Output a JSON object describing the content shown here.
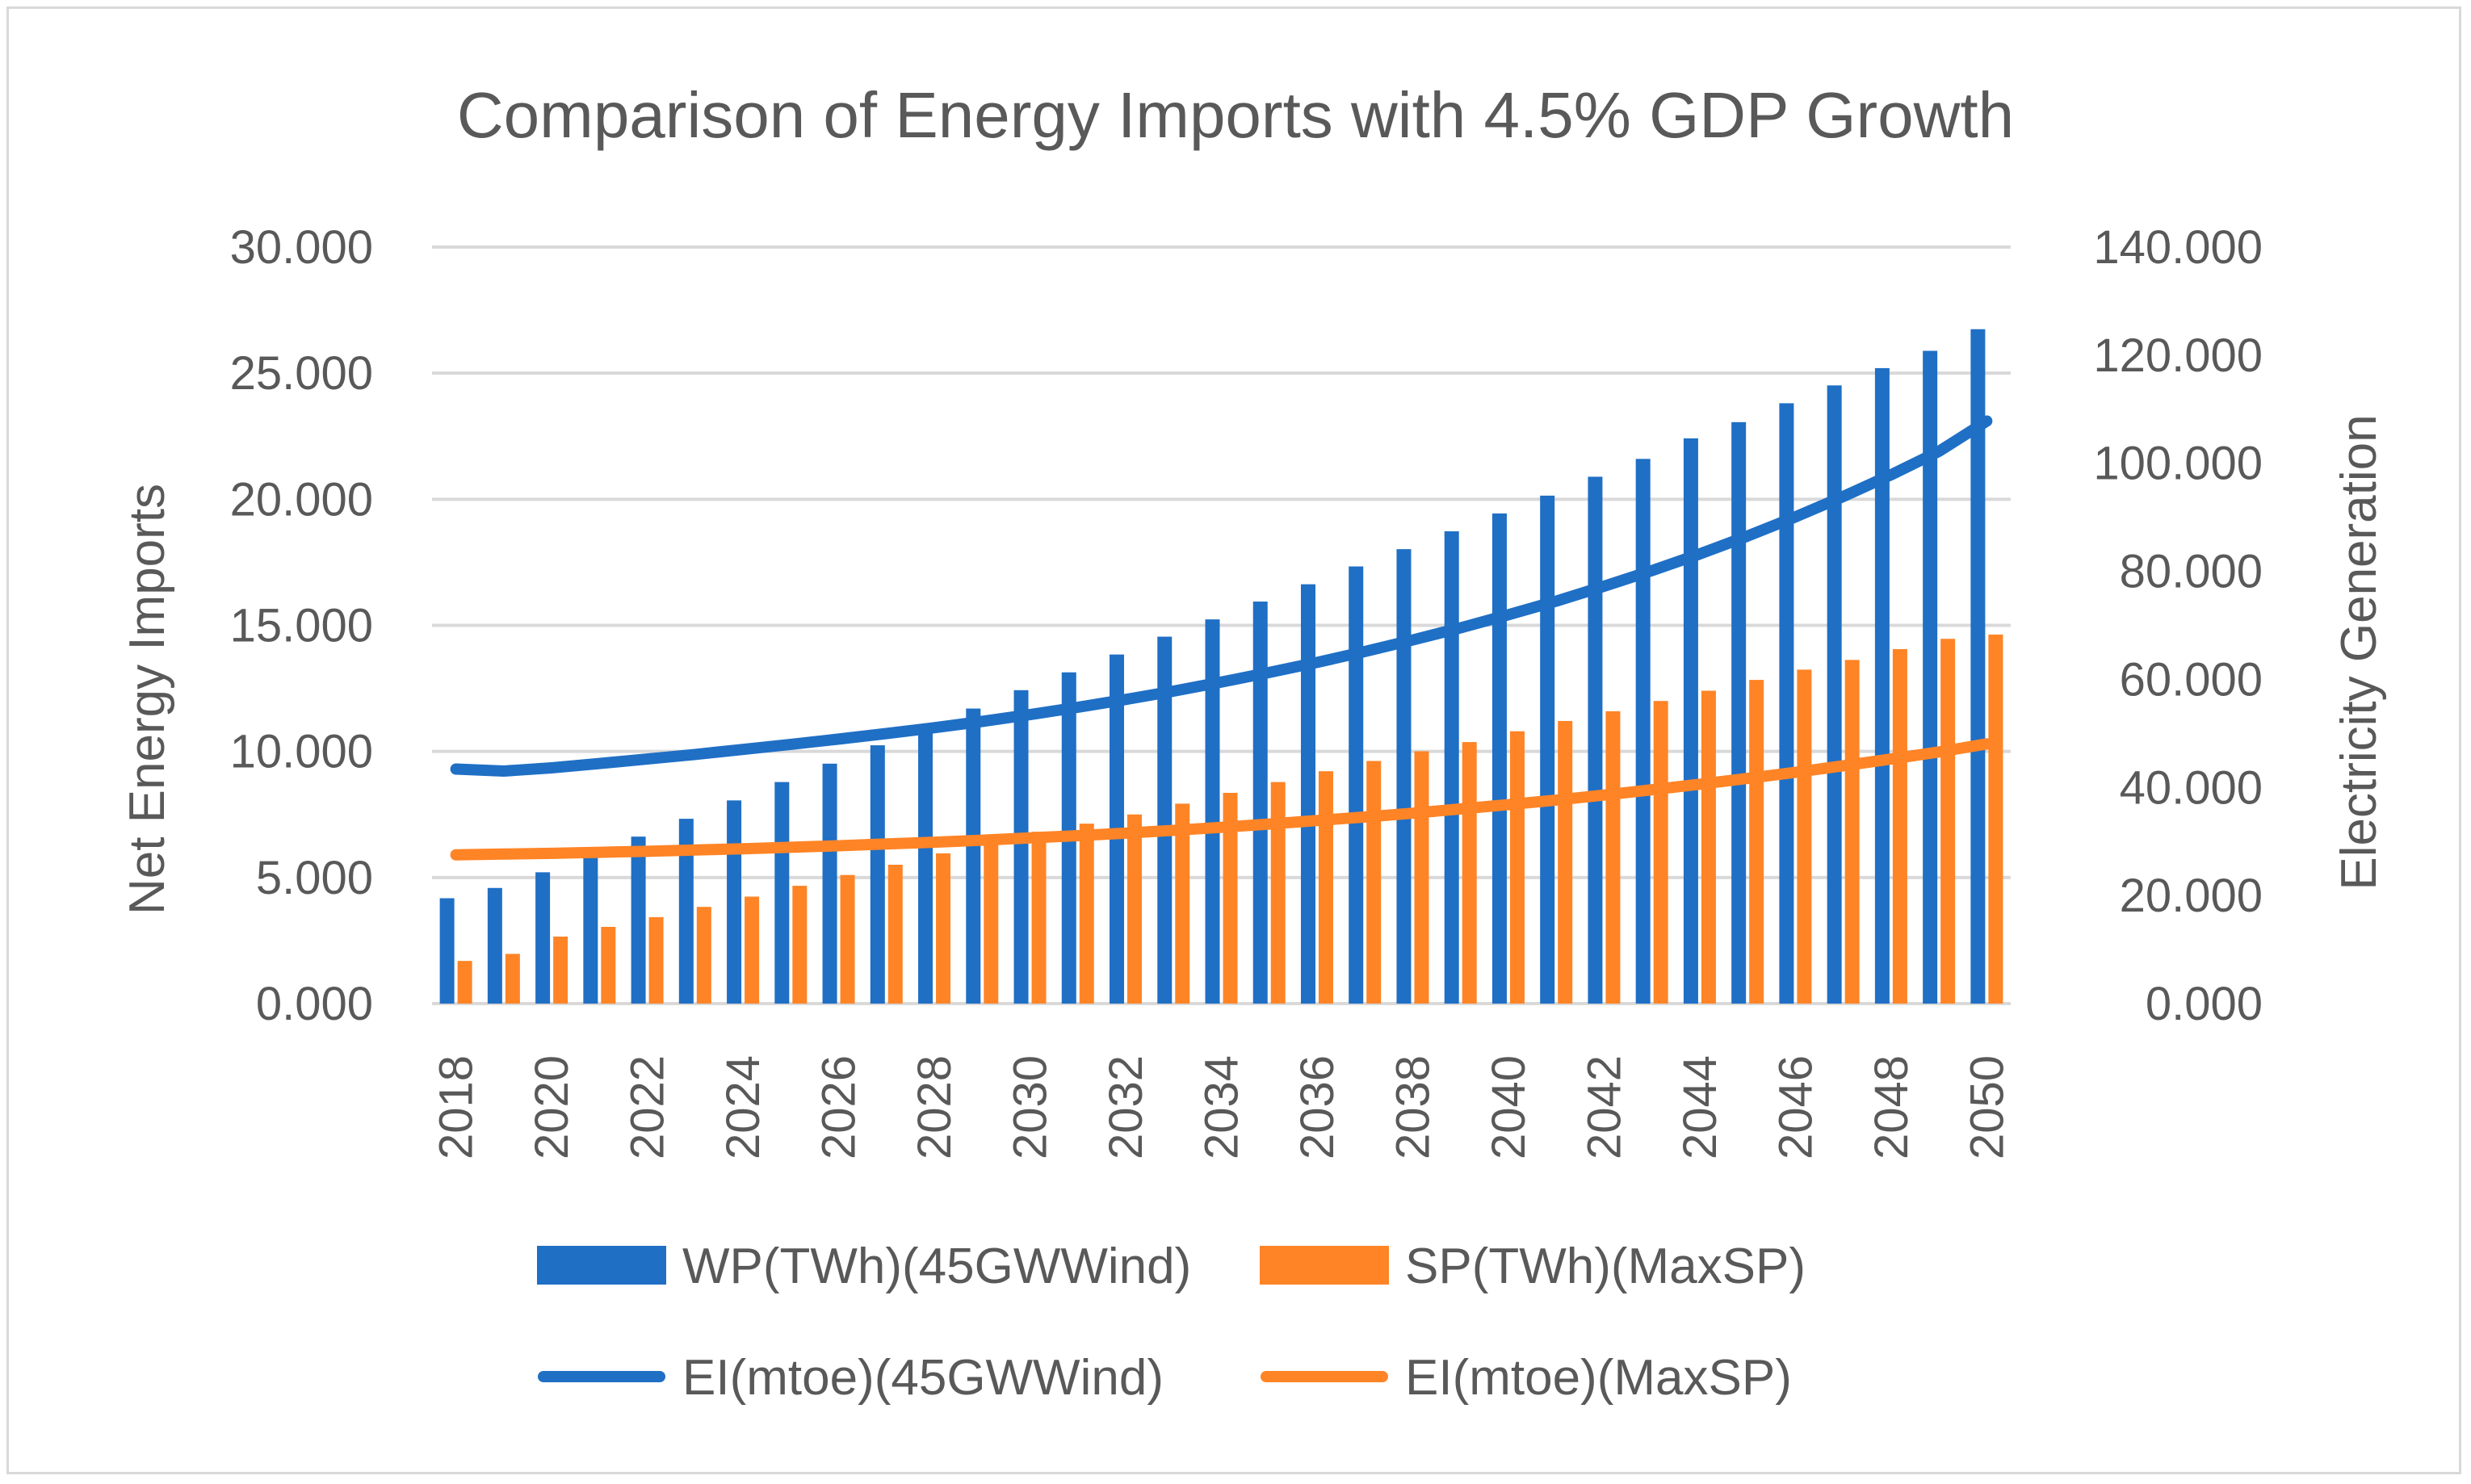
{
  "chart_data": {
    "type": "bar",
    "title": "Comparison of Energy Imports with 4.5% GDP Growth",
    "ylabel": "Net Energy Imports",
    "y2label": "Electricity Generation",
    "xlabel": "",
    "ylim": [
      0,
      30
    ],
    "y2lim": [
      0,
      140
    ],
    "y_ticks": [
      "0.000",
      "5.000",
      "10.000",
      "15.000",
      "20.000",
      "25.000",
      "30.000"
    ],
    "y2_ticks": [
      "0.000",
      "20.000",
      "40.000",
      "60.000",
      "80.000",
      "100.000",
      "120.000",
      "140.000"
    ],
    "x_tick_labels": [
      "2018",
      "2020",
      "2022",
      "2024",
      "2026",
      "2028",
      "2030",
      "2032",
      "2034",
      "2036",
      "2038",
      "2040",
      "2042",
      "2044",
      "2046",
      "2048",
      "2050"
    ],
    "categories": [
      "2018",
      "2019",
      "2020",
      "2021",
      "2022",
      "2023",
      "2024",
      "2025",
      "2026",
      "2027",
      "2028",
      "2029",
      "2030",
      "2031",
      "2032",
      "2033",
      "2034",
      "2035",
      "2036",
      "2037",
      "2038",
      "2039",
      "2040",
      "2041",
      "2042",
      "2043",
      "2044",
      "2045",
      "2046",
      "2047",
      "2048",
      "2049",
      "2050"
    ],
    "legend_position": "bottom",
    "gridlines": true,
    "series": [
      {
        "name": "WP(TWh)(45GWWind)",
        "kind": "bar",
        "axis": "right",
        "color": "#1f6fc5",
        "values": [
          19.5,
          21.4,
          24.3,
          27.2,
          30.9,
          34.2,
          37.6,
          41.0,
          44.4,
          47.8,
          51.2,
          54.6,
          58.0,
          61.3,
          64.6,
          67.9,
          71.1,
          74.4,
          77.6,
          80.9,
          84.1,
          87.4,
          90.7,
          94.0,
          97.5,
          100.8,
          104.6,
          107.6,
          111.1,
          114.4,
          117.6,
          120.8,
          124.8
        ]
      },
      {
        "name": "SP(TWh)(MaxSP)",
        "kind": "bar",
        "axis": "right",
        "color": "#ff8426",
        "values": [
          7.9,
          9.2,
          12.4,
          14.2,
          16.0,
          17.9,
          19.8,
          21.8,
          23.8,
          25.7,
          27.8,
          29.8,
          31.8,
          33.3,
          35.0,
          37.0,
          39.0,
          41.0,
          43.0,
          44.9,
          46.7,
          48.4,
          50.4,
          52.3,
          54.1,
          56.0,
          57.9,
          59.9,
          61.8,
          63.6,
          65.6,
          67.5,
          68.3
        ]
      },
      {
        "name": "EI(mtoe)(45GWWind)",
        "kind": "line",
        "axis": "left",
        "color": "#1f6fc5",
        "values": [
          9.3,
          9.22,
          9.35,
          9.52,
          9.7,
          9.88,
          10.08,
          10.28,
          10.49,
          10.71,
          10.94,
          11.19,
          11.46,
          11.75,
          12.06,
          12.39,
          12.75,
          13.13,
          13.53,
          13.96,
          14.42,
          14.9,
          15.42,
          15.96,
          16.55,
          17.17,
          17.83,
          18.54,
          19.3,
          20.11,
          20.97,
          21.9,
          23.1
        ]
      },
      {
        "name": "EI(mtoe)(MaxSP)",
        "kind": "line",
        "axis": "left",
        "color": "#ff8426",
        "values": [
          5.9,
          5.93,
          5.96,
          6.0,
          6.04,
          6.09,
          6.14,
          6.2,
          6.26,
          6.33,
          6.4,
          6.48,
          6.57,
          6.66,
          6.76,
          6.87,
          6.99,
          7.12,
          7.26,
          7.4,
          7.55,
          7.72,
          7.89,
          8.07,
          8.27,
          8.48,
          8.7,
          8.93,
          9.17,
          9.43,
          9.7,
          9.98,
          10.3
        ]
      }
    ]
  }
}
